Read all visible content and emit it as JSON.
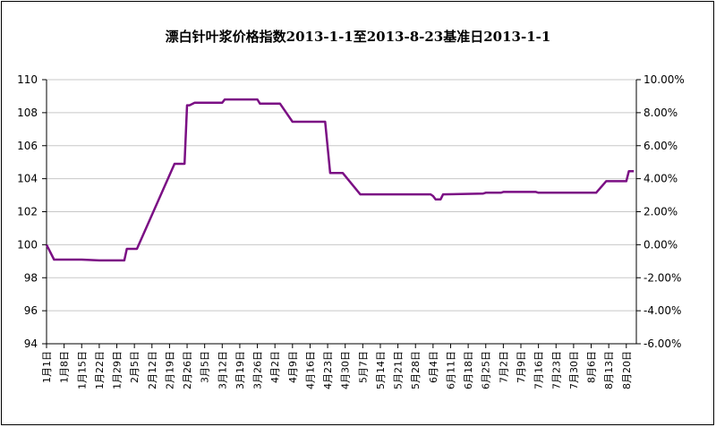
{
  "chart_data": {
    "type": "line",
    "title": "漂白针叶浆价格指数2013-1-1至2013-8-23基准日2013-1-1",
    "xlabel": "",
    "ylabel": "",
    "ylim": [
      94,
      110
    ],
    "y2lim": [
      -6,
      10
    ],
    "y_ticks": [
      "94",
      "96",
      "98",
      "100",
      "102",
      "104",
      "106",
      "108",
      "110"
    ],
    "y2_ticks": [
      "-6.00%",
      "-4.00%",
      "-2.00%",
      "0.00%",
      "2.00%",
      "4.00%",
      "6.00%",
      "8.00%",
      "10.00%"
    ],
    "x_ticks": [
      "1月1日",
      "1月8日",
      "1月15日",
      "1月22日",
      "1月29日",
      "2月5日",
      "2月12日",
      "2月19日",
      "2月26日",
      "3月5日",
      "3月12日",
      "3月19日",
      "3月26日",
      "4月2日",
      "4月9日",
      "4月16日",
      "4月23日",
      "4月30日",
      "5月7日",
      "5月14日",
      "5月21日",
      "5月28日",
      "6月4日",
      "6月11日",
      "6月18日",
      "6月25日",
      "7月2日",
      "7月9日",
      "7月16日",
      "7月23日",
      "7月30日",
      "8月6日",
      "8月13日",
      "8月20日"
    ],
    "grid": true,
    "legend": "none",
    "line_color": "#7B0F84",
    "series": [
      {
        "x": [
          "2013-01-01",
          "2013-01-04",
          "2013-01-15",
          "2013-01-22",
          "2013-02-01",
          "2013-02-02",
          "2013-02-06",
          "2013-02-21",
          "2013-02-22",
          "2013-02-25",
          "2013-02-26",
          "2013-02-27",
          "2013-03-01",
          "2013-03-12",
          "2013-03-13",
          "2013-03-26",
          "2013-03-27",
          "2013-04-04",
          "2013-04-09",
          "2013-04-22",
          "2013-04-24",
          "2013-04-29",
          "2013-05-06",
          "2013-06-03",
          "2013-06-04",
          "2013-06-05",
          "2013-06-07",
          "2013-06-08",
          "2013-06-24",
          "2013-06-25",
          "2013-07-01",
          "2013-07-02",
          "2013-07-15",
          "2013-07-16",
          "2013-08-08",
          "2013-08-12",
          "2013-08-20",
          "2013-08-21",
          "2013-08-23"
        ],
        "values": [
          100,
          99.1,
          99.1,
          99.05,
          99.05,
          99.75,
          99.75,
          104.9,
          104.9,
          104.9,
          108.45,
          108.45,
          108.6,
          108.6,
          108.8,
          108.8,
          108.55,
          108.55,
          107.45,
          107.45,
          104.35,
          104.35,
          103.05,
          103.05,
          102.95,
          102.75,
          102.75,
          103.05,
          103.1,
          103.15,
          103.15,
          103.2,
          103.2,
          103.15,
          103.15,
          103.85,
          103.85,
          104.45,
          104.45
        ]
      }
    ]
  }
}
